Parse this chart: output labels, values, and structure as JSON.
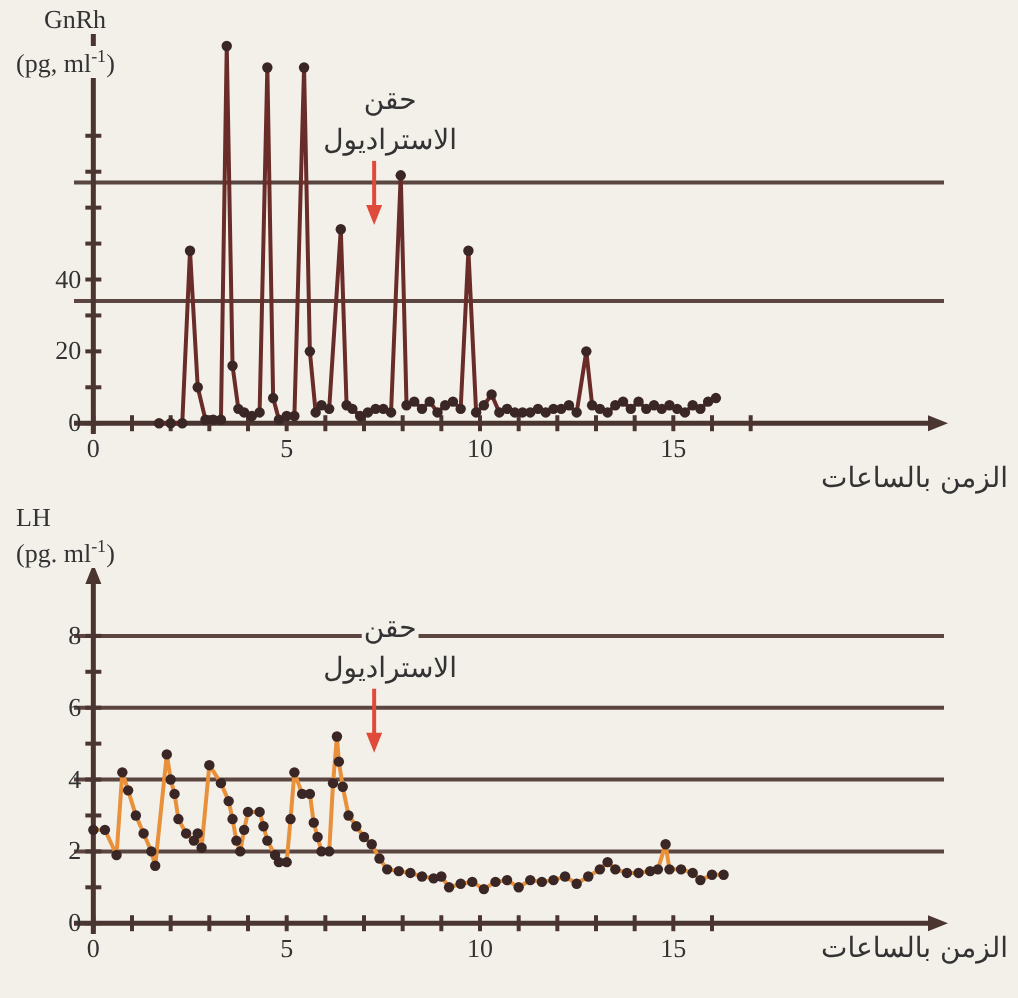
{
  "chart_data": [
    {
      "type": "line",
      "ylabel": "GnRh (pg, ml$^{-1}$)",
      "xlabel": "الزمن بالساعات",
      "xlim": [
        -0.5,
        22
      ],
      "ylim": [
        -3,
        110
      ],
      "xticks": [
        0,
        {
          "value": 1,
          "label": null
        },
        {
          "value": 2,
          "label": null
        },
        {
          "value": 3,
          "label": null
        },
        {
          "value": 4,
          "label": null
        },
        5,
        {
          "value": 6,
          "label": null
        },
        {
          "value": 7,
          "label": null
        },
        {
          "value": 8,
          "label": null
        },
        {
          "value": 9,
          "label": null
        },
        10,
        {
          "value": 11,
          "label": null
        },
        {
          "value": 12,
          "label": null
        },
        {
          "value": 13,
          "label": null
        },
        {
          "value": 14,
          "label": null
        },
        15,
        {
          "value": 16,
          "label": null
        },
        {
          "value": 17,
          "label": null
        }
      ],
      "yticks": [
        0,
        {
          "value": 10,
          "label": null
        },
        20,
        {
          "value": 30,
          "label": null
        },
        40,
        {
          "value": 50,
          "label": null
        },
        {
          "value": 60,
          "label": null
        },
        {
          "value": 70,
          "label": null
        },
        {
          "value": 80,
          "label": null
        }
      ],
      "ref_lines": [
        {
          "axis": "y",
          "value": 34,
          "color": "#5a4540"
        },
        {
          "axis": "y",
          "value": 67,
          "color": "#5a4540"
        }
      ],
      "annotations": [
        "حقن الاستراديول"
      ],
      "marker": "circle",
      "series": [
        {
          "color": "#6a2c28",
          "x": [
            1.7,
            2.0,
            2.3,
            2.5,
            2.7,
            2.9,
            3.1,
            3.3,
            3.45,
            3.6,
            3.75,
            3.9,
            4.1,
            4.3,
            4.5,
            4.65,
            4.8,
            5.0,
            5.2,
            5.45,
            5.6,
            5.75,
            5.9,
            6.1,
            6.4,
            6.55,
            6.7,
            6.9,
            7.1,
            7.3,
            7.5,
            7.7,
            7.95,
            8.1,
            8.3,
            8.5,
            8.7,
            8.9,
            9.1,
            9.3,
            9.5,
            9.7,
            9.9,
            10.1,
            10.3,
            10.5,
            10.7,
            10.9,
            11.1,
            11.3,
            11.5,
            11.7,
            11.9,
            12.1,
            12.3,
            12.5,
            12.75,
            12.9,
            13.1,
            13.3,
            13.5,
            13.7,
            13.9,
            14.1,
            14.3,
            14.5,
            14.7,
            14.9,
            15.1,
            15.3,
            15.5,
            15.7,
            15.9,
            16.1
          ],
          "values": [
            0,
            0,
            0,
            48,
            10,
            1,
            1,
            1,
            105,
            16,
            4,
            3,
            2,
            3,
            99,
            7,
            1,
            2,
            2,
            99,
            20,
            3,
            5,
            4,
            54,
            5,
            4,
            2,
            3,
            4,
            4,
            3,
            69,
            5,
            6,
            4,
            6,
            3,
            5,
            6,
            4,
            48,
            3,
            5,
            8,
            3,
            4,
            3,
            3,
            3,
            4,
            3,
            4,
            4,
            5,
            3,
            20,
            5,
            4,
            3,
            5,
            6,
            4,
            6,
            4,
            5,
            4,
            5,
            4,
            3,
            5,
            4,
            6,
            7
          ]
        }
      ]
    },
    {
      "type": "line",
      "ylabel": "LH (pg. ml$^{-1}$)",
      "xlabel": "الزمن بالساعات",
      "xlim": [
        -0.5,
        22
      ],
      "ylim": [
        -0.3,
        9.5
      ],
      "grid": "y",
      "xticks": [
        0,
        {
          "value": 1,
          "label": null
        },
        {
          "value": 2,
          "label": null
        },
        {
          "value": 3,
          "label": null
        },
        {
          "value": 4,
          "label": null
        },
        5,
        {
          "value": 6,
          "label": null
        },
        {
          "value": 7,
          "label": null
        },
        {
          "value": 8,
          "label": null
        },
        {
          "value": 9,
          "label": null
        },
        10,
        {
          "value": 11,
          "label": null
        },
        {
          "value": 12,
          "label": null
        },
        {
          "value": 13,
          "label": null
        },
        {
          "value": 14,
          "label": null
        },
        15,
        {
          "value": 16,
          "label": null
        }
      ],
      "yticks": [
        0,
        {
          "value": 1,
          "label": null
        },
        2,
        {
          "value": 3,
          "label": null
        },
        4,
        {
          "value": 5,
          "label": null
        },
        6,
        {
          "value": 7,
          "label": null
        },
        8
      ],
      "annotations": [
        "حقن الاستراديول"
      ],
      "marker": "circle",
      "series": [
        {
          "color": "#e8903a",
          "x": [
            0,
            0.3,
            0.6,
            0.75,
            0.9,
            1.1,
            1.3,
            1.5,
            1.6,
            1.9,
            2.0,
            2.1,
            2.2,
            2.4,
            2.6,
            2.7,
            2.8,
            3.0,
            3.3,
            3.5,
            3.6,
            3.7,
            3.8,
            3.9,
            4.0,
            4.3,
            4.4,
            4.5,
            4.7,
            4.8,
            5.0,
            5.1,
            5.2,
            5.4,
            5.6,
            5.7,
            5.8,
            5.9,
            6.1,
            6.2,
            6.3,
            6.35,
            6.45,
            6.6,
            6.8,
            7.0,
            7.2,
            7.4,
            7.6,
            7.9,
            8.2,
            8.5,
            8.8,
            9.0,
            9.2,
            9.5,
            9.8,
            10.1,
            10.4,
            10.7,
            11.0,
            11.3,
            11.6,
            11.9,
            12.2,
            12.5,
            12.8,
            13.1,
            13.3,
            13.5,
            13.8,
            14.1,
            14.4,
            14.6,
            14.8,
            14.9,
            15.2,
            15.5,
            15.7,
            16.0,
            16.3
          ],
          "values": [
            2.6,
            2.6,
            1.9,
            4.2,
            3.7,
            3.0,
            2.5,
            2.0,
            1.6,
            4.7,
            4.0,
            3.6,
            2.9,
            2.5,
            2.3,
            2.5,
            2.1,
            4.4,
            3.9,
            3.4,
            2.9,
            2.3,
            2.0,
            2.6,
            3.1,
            3.1,
            2.7,
            2.3,
            1.9,
            1.7,
            1.7,
            2.9,
            4.2,
            3.6,
            3.6,
            2.8,
            2.4,
            2.0,
            2.0,
            3.9,
            5.2,
            4.5,
            3.8,
            3.0,
            2.7,
            2.4,
            2.2,
            1.8,
            1.5,
            1.45,
            1.4,
            1.3,
            1.25,
            1.3,
            1.0,
            1.1,
            1.15,
            0.95,
            1.15,
            1.2,
            1.0,
            1.2,
            1.15,
            1.2,
            1.3,
            1.1,
            1.3,
            1.5,
            1.7,
            1.5,
            1.4,
            1.4,
            1.45,
            1.5,
            2.2,
            1.5,
            1.5,
            1.4,
            1.2,
            1.35,
            1.35
          ]
        }
      ]
    }
  ]
}
